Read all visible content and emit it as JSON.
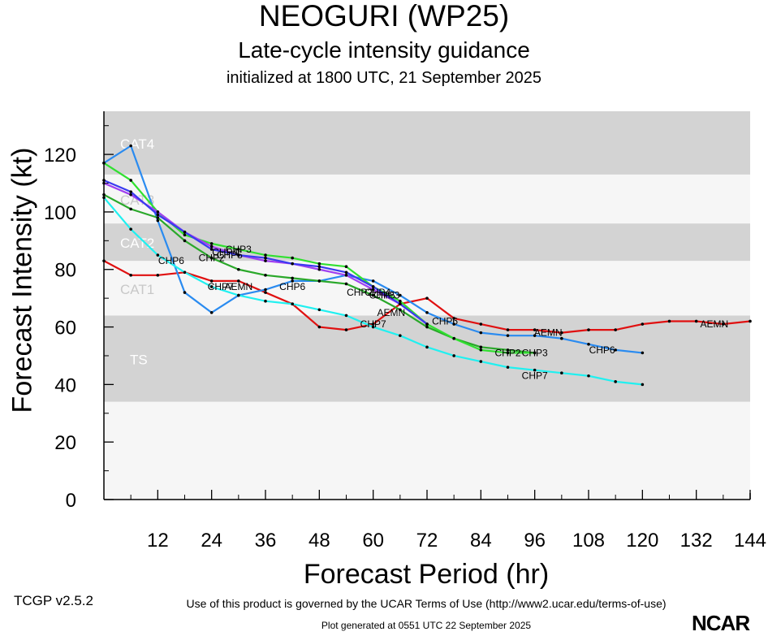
{
  "header": {
    "title": "NEOGURI (WP25)",
    "subtitle": "Late-cycle intensity guidance",
    "init": "initialized at 1800 UTC, 21 September 2025"
  },
  "footer": {
    "terms": "Use of this product is governed by the UCAR Terms of Use (http://www2.ucar.edu/terms-of-use)",
    "version": "TCGP v2.5.2",
    "generated": "Plot generated at 0551 UTC   22 September 2025",
    "logo": "NCAR"
  },
  "chart_data": {
    "type": "line",
    "title": "NEOGURI (WP25)",
    "xlabel": "Forecast Period (hr)",
    "ylabel": "Forecast Intensity (kt)",
    "xlim": [
      0,
      144
    ],
    "ylim": [
      0,
      135
    ],
    "xticks": [
      12,
      24,
      36,
      48,
      60,
      72,
      84,
      96,
      108,
      120,
      132,
      144
    ],
    "yticks": [
      0,
      20,
      40,
      60,
      80,
      100,
      120
    ],
    "bands": [
      {
        "label": "TS",
        "min": 34,
        "max": 64,
        "fill": "#d3d3d3"
      },
      {
        "label": "CAT1",
        "min": 64,
        "max": 83,
        "fill": "#f6f6f6"
      },
      {
        "label": "CAT2",
        "min": 83,
        "max": 96,
        "fill": "#d3d3d3"
      },
      {
        "label": "CAT3",
        "min": 96,
        "max": 113,
        "fill": "#f6f6f6"
      },
      {
        "label": "CAT4",
        "min": 113,
        "max": 137,
        "fill": "#d3d3d3"
      }
    ],
    "below_band_fill": "#f6f6f6",
    "series": [
      {
        "name": "AEMN",
        "color": "#e01010",
        "x": [
          0,
          6,
          12,
          18,
          24,
          30,
          36,
          42,
          48,
          54,
          60,
          66,
          72,
          78,
          84,
          90,
          96,
          102,
          108,
          114,
          120,
          126,
          132,
          138,
          144
        ],
        "y": [
          83,
          78,
          78,
          79,
          76,
          76,
          72,
          68,
          60,
          59,
          61,
          68,
          70,
          63,
          61,
          59,
          59,
          58,
          59,
          59,
          61,
          62,
          62,
          61,
          62
        ],
        "labels": [
          {
            "x": 30,
            "y": 74
          },
          {
            "x": 64,
            "y": 65
          },
          {
            "x": 99,
            "y": 58
          },
          {
            "x": 136,
            "y": 61
          }
        ]
      },
      {
        "name": "CHP6",
        "color": "#2a8bf0",
        "x": [
          0,
          6,
          12,
          18,
          24,
          30,
          36,
          42,
          48,
          54,
          60,
          66,
          72,
          78,
          84,
          90,
          96,
          102,
          108,
          114,
          120
        ],
        "y": [
          117,
          123,
          97,
          72,
          65,
          71,
          73,
          76,
          76,
          78,
          76,
          71,
          65,
          61,
          58,
          57,
          57,
          56,
          54,
          52,
          51
        ],
        "labels": [
          {
            "x": 15,
            "y": 83
          },
          {
            "x": 42,
            "y": 74
          },
          {
            "x": 76,
            "y": 62
          },
          {
            "x": 111,
            "y": 52
          }
        ]
      },
      {
        "name": "CHP7",
        "color": "#20f0f0",
        "x": [
          0,
          6,
          12,
          18,
          24,
          30,
          36,
          42,
          48,
          54,
          60,
          66,
          72,
          78,
          84,
          90,
          96,
          102,
          108,
          114,
          120
        ],
        "y": [
          105,
          94,
          85,
          79,
          74,
          71,
          69,
          68,
          66,
          64,
          60,
          57,
          53,
          50,
          48,
          46,
          45,
          44,
          43,
          41,
          40
        ],
        "labels": [
          {
            "x": 26,
            "y": 74
          },
          {
            "x": 60,
            "y": 61
          },
          {
            "x": 96,
            "y": 43
          }
        ]
      },
      {
        "name": "CHP2",
        "color": "#2aa82a",
        "x": [
          0,
          6,
          12,
          18,
          24,
          30,
          36,
          42,
          48,
          54,
          60,
          66,
          72,
          78,
          84,
          90,
          96
        ],
        "y": [
          106,
          101,
          98,
          90,
          84,
          80,
          78,
          77,
          76,
          75,
          71,
          66,
          60,
          56,
          53,
          52,
          51
        ],
        "labels": [
          {
            "x": 24,
            "y": 84
          },
          {
            "x": 57,
            "y": 72
          },
          {
            "x": 90,
            "y": 51
          }
        ]
      },
      {
        "name": "CHP3",
        "color": "#30e030",
        "x": [
          0,
          6,
          12,
          18,
          24,
          30,
          36,
          42,
          48,
          54,
          60,
          66,
          72,
          78,
          84,
          90,
          96
        ],
        "y": [
          117,
          111,
          100,
          92,
          89,
          87,
          85,
          84,
          82,
          81,
          74,
          69,
          61,
          56,
          52,
          51,
          51
        ],
        "labels": [
          {
            "x": 30,
            "y": 87
          },
          {
            "x": 63,
            "y": 71
          },
          {
            "x": 96,
            "y": 51
          }
        ]
      },
      {
        "name": "CHP4",
        "color": "#a040f0",
        "x": [
          0,
          6,
          12,
          18,
          24,
          30,
          36,
          42,
          48,
          54,
          60,
          66,
          72
        ],
        "y": [
          110,
          106,
          100,
          93,
          88,
          85,
          83,
          82,
          80,
          78,
          73,
          68,
          61
        ],
        "labels": [
          {
            "x": 27,
            "y": 86
          },
          {
            "x": 61,
            "y": 72
          }
        ]
      },
      {
        "name": "CHP5",
        "color": "#3a3af0",
        "x": [
          0,
          6,
          12,
          18,
          24,
          30,
          36,
          42,
          48,
          54,
          60,
          66,
          72
        ],
        "y": [
          111,
          107,
          99,
          93,
          87,
          85,
          84,
          82,
          81,
          79,
          74,
          68,
          61
        ],
        "labels": [
          {
            "x": 28,
            "y": 85
          },
          {
            "x": 62,
            "y": 71
          }
        ]
      }
    ]
  }
}
